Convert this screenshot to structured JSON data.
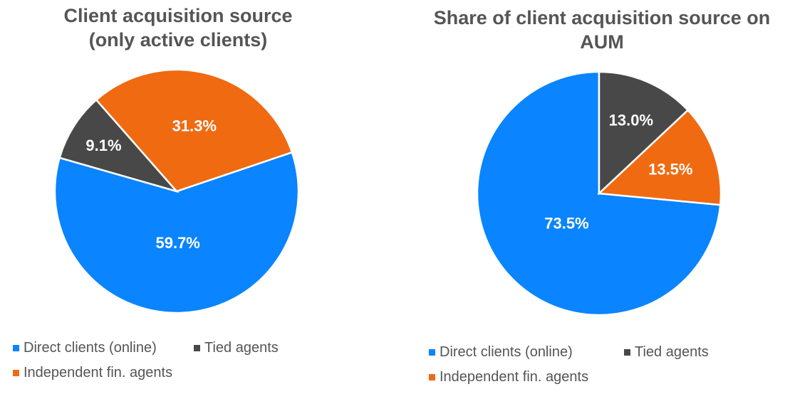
{
  "colors": {
    "direct": "#0A84FF",
    "tied": "#484848",
    "independent": "#F06A12"
  },
  "chart_data": [
    {
      "type": "pie",
      "title_line1": "Client acquisition source",
      "title_line2": "(only active clients)",
      "categories": [
        "Direct clients (online)",
        "Tied agents",
        "Independent fin. agents"
      ],
      "values": [
        59.7,
        9.1,
        31.3
      ],
      "labels": [
        "59.7%",
        "9.1%",
        "31.3%"
      ],
      "first_slice_angle_deg": 71.3,
      "legend": [
        "Direct clients (online)",
        "Tied agents",
        "Independent fin. agents"
      ],
      "legend_position": "bottom"
    },
    {
      "type": "pie",
      "title_line1": "Share of client acquisition source on",
      "title_line2": "AUM",
      "categories": [
        "Direct clients (online)",
        "Tied agents",
        "Independent fin. agents"
      ],
      "values": [
        73.5,
        13.0,
        13.5
      ],
      "labels": [
        "73.5%",
        "13.0%",
        "13.5%"
      ],
      "first_slice_angle_deg": 95.4,
      "legend": [
        "Direct clients (online)",
        "Tied agents",
        "Independent fin. agents"
      ],
      "legend_position": "bottom"
    }
  ]
}
